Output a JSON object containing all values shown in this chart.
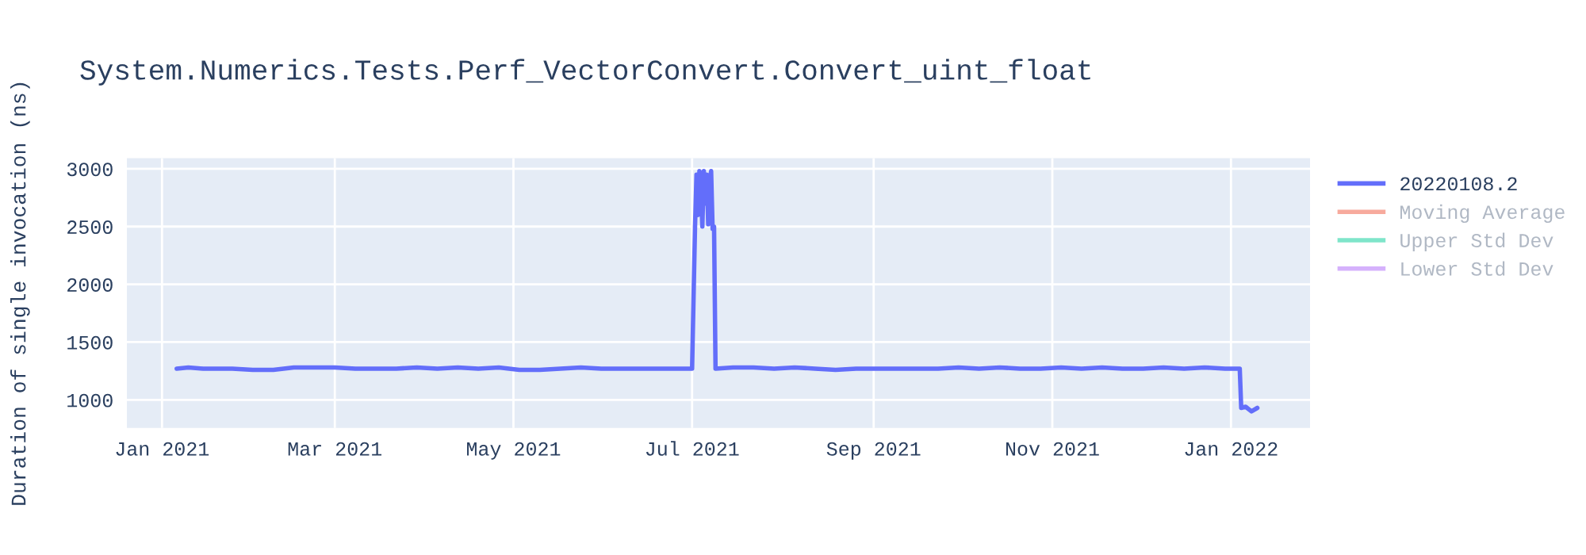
{
  "chart_data": {
    "type": "line",
    "title": "System.Numerics.Tests.Perf_VectorConvert.Convert_uint_float",
    "ylabel": "Duration of single invocation (ns)",
    "x": [
      "2021-01-06",
      "2021-01-10",
      "2021-01-15",
      "2021-01-20",
      "2021-01-25",
      "2021-02-01",
      "2021-02-08",
      "2021-02-15",
      "2021-02-22",
      "2021-03-01",
      "2021-03-08",
      "2021-03-15",
      "2021-03-22",
      "2021-03-29",
      "2021-04-05",
      "2021-04-12",
      "2021-04-19",
      "2021-04-26",
      "2021-05-03",
      "2021-05-10",
      "2021-05-17",
      "2021-05-24",
      "2021-05-31",
      "2021-06-07",
      "2021-06-14",
      "2021-06-21",
      "2021-06-28",
      "2021-07-01",
      "2021-07-02",
      "2021-07-02T12:00",
      "2021-07-03",
      "2021-07-03T12:00",
      "2021-07-04",
      "2021-07-04T12:00",
      "2021-07-05",
      "2021-07-05T12:00",
      "2021-07-06",
      "2021-07-06T12:00",
      "2021-07-07",
      "2021-07-07T12:00",
      "2021-07-08",
      "2021-07-08T12:00",
      "2021-07-09",
      "2021-07-15",
      "2021-07-22",
      "2021-07-29",
      "2021-08-05",
      "2021-08-12",
      "2021-08-19",
      "2021-08-26",
      "2021-09-02",
      "2021-09-09",
      "2021-09-16",
      "2021-09-23",
      "2021-09-30",
      "2021-10-07",
      "2021-10-14",
      "2021-10-21",
      "2021-10-28",
      "2021-11-04",
      "2021-11-11",
      "2021-11-18",
      "2021-11-25",
      "2021-12-02",
      "2021-12-09",
      "2021-12-16",
      "2021-12-23",
      "2021-12-30",
      "2022-01-04",
      "2022-01-04T12:00",
      "2022-01-06",
      "2022-01-08",
      "2022-01-10"
    ],
    "series": [
      {
        "name": "20220108.2",
        "color": "#636efa",
        "values": [
          1270,
          1280,
          1270,
          1270,
          1270,
          1260,
          1260,
          1280,
          1280,
          1280,
          1270,
          1270,
          1270,
          1280,
          1270,
          1280,
          1270,
          1280,
          1260,
          1260,
          1270,
          1280,
          1270,
          1270,
          1270,
          1270,
          1270,
          1270,
          2500,
          2950,
          2600,
          2980,
          2850,
          2500,
          2980,
          2700,
          2950,
          2520,
          2900,
          2980,
          2480,
          2500,
          1270,
          1280,
          1280,
          1270,
          1280,
          1270,
          1260,
          1270,
          1270,
          1270,
          1270,
          1270,
          1280,
          1270,
          1280,
          1270,
          1270,
          1280,
          1270,
          1280,
          1270,
          1270,
          1280,
          1270,
          1280,
          1270,
          1270,
          930,
          940,
          900,
          930
        ]
      },
      {
        "name": "Moving Average",
        "color": "#ef553b",
        "values": [
          null,
          null,
          null,
          null,
          null,
          null,
          null,
          null,
          null,
          null,
          null,
          null,
          null,
          null,
          null,
          null,
          null,
          null,
          null,
          null,
          null,
          null,
          null,
          null,
          null,
          null,
          null,
          null,
          null,
          null,
          null,
          null,
          null,
          null,
          null,
          null,
          null,
          null,
          null,
          null,
          null,
          null,
          null,
          null,
          null,
          null,
          null,
          null,
          null,
          null,
          null,
          null,
          null,
          null,
          null,
          null,
          null,
          null,
          null,
          null,
          null,
          null,
          null,
          null,
          null,
          null,
          null,
          null,
          null,
          null,
          null,
          null,
          null
        ]
      },
      {
        "name": "Upper Std Dev",
        "color": "#00cc96",
        "values": [
          null,
          null,
          null,
          null,
          null,
          null,
          null,
          null,
          null,
          null,
          null,
          null,
          null,
          null,
          null,
          null,
          null,
          null,
          null,
          null,
          null,
          null,
          null,
          null,
          null,
          null,
          null,
          null,
          null,
          null,
          null,
          null,
          null,
          null,
          null,
          null,
          null,
          null,
          null,
          null,
          null,
          null,
          null,
          null,
          null,
          null,
          null,
          null,
          null,
          null,
          null,
          null,
          null,
          null,
          null,
          null,
          null,
          null,
          null,
          null,
          null,
          null,
          null,
          null,
          null,
          null,
          null,
          null,
          null,
          null,
          null,
          null,
          null
        ]
      },
      {
        "name": "Lower Std Dev",
        "color": "#ab63fa",
        "values": [
          null,
          null,
          null,
          null,
          null,
          null,
          null,
          null,
          null,
          null,
          null,
          null,
          null,
          null,
          null,
          null,
          null,
          null,
          null,
          null,
          null,
          null,
          null,
          null,
          null,
          null,
          null,
          null,
          null,
          null,
          null,
          null,
          null,
          null,
          null,
          null,
          null,
          null,
          null,
          null,
          null,
          null,
          null,
          null,
          null,
          null,
          null,
          null,
          null,
          null,
          null,
          null,
          null,
          null,
          null,
          null,
          null,
          null,
          null,
          null,
          null,
          null,
          null,
          null,
          null,
          null,
          null,
          null,
          null,
          null,
          null,
          null,
          null
        ]
      }
    ],
    "xlim": [
      "2020-12-20",
      "2022-01-28"
    ],
    "xticks": [
      {
        "value": "2021-01-01",
        "label": "Jan 2021"
      },
      {
        "value": "2021-03-01",
        "label": "Mar 2021"
      },
      {
        "value": "2021-05-01",
        "label": "May 2021"
      },
      {
        "value": "2021-07-01",
        "label": "Jul 2021"
      },
      {
        "value": "2021-09-01",
        "label": "Sep 2021"
      },
      {
        "value": "2021-11-01",
        "label": "Nov 2021"
      },
      {
        "value": "2022-01-01",
        "label": "Jan 2022"
      }
    ],
    "ylim": [
      757,
      3092
    ],
    "yticks": [
      1000,
      1500,
      2000,
      2500,
      3000
    ],
    "grid": true,
    "legend": "top right"
  }
}
